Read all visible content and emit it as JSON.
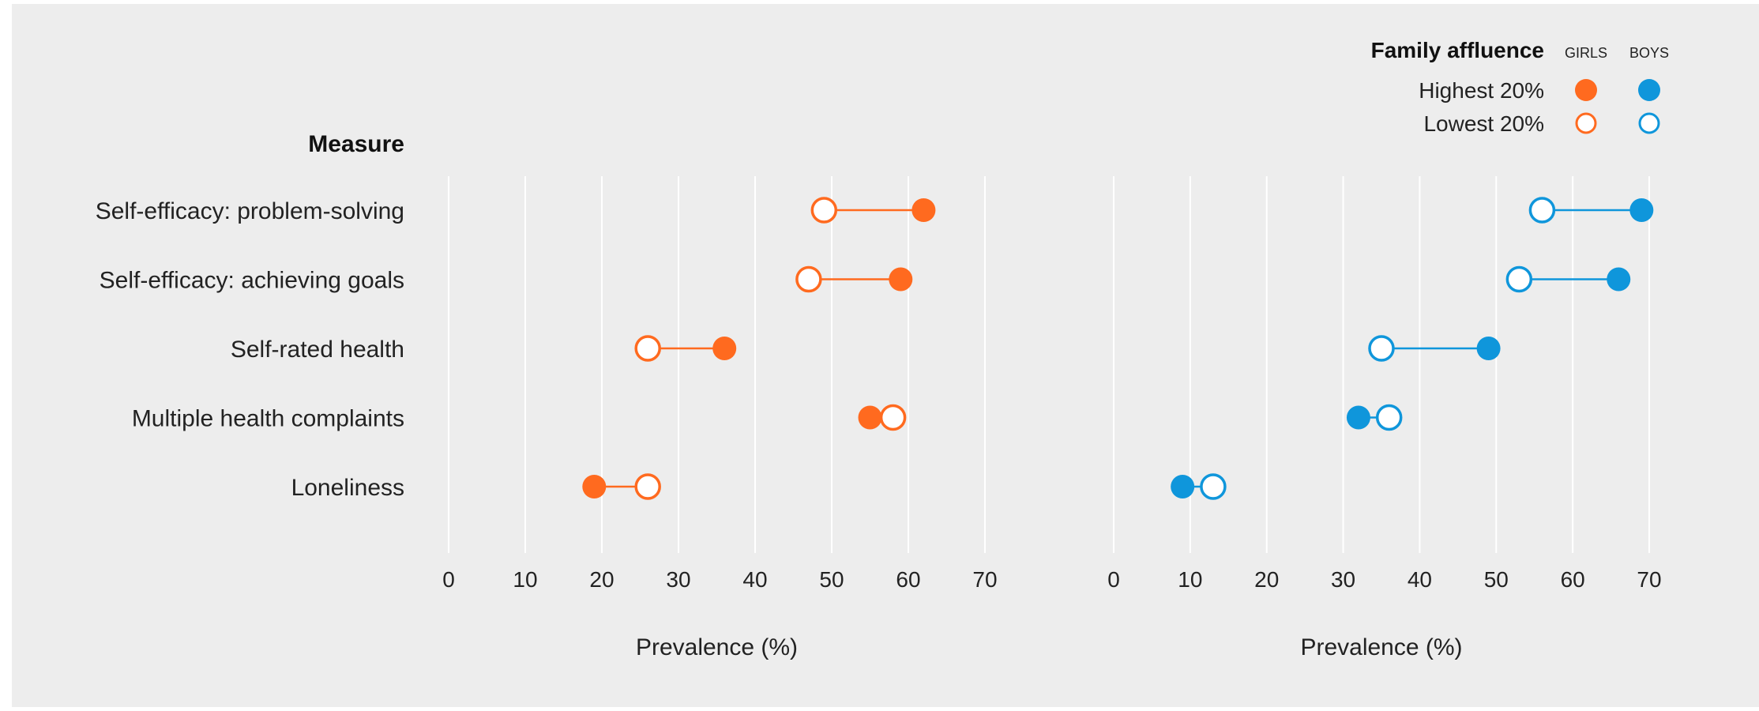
{
  "chart_data": {
    "type": "dumbbell",
    "measure_header": "Measure",
    "categories": [
      "Self-efficacy: problem-solving",
      "Self-efficacy: achieving goals",
      "Self-rated health",
      "Multiple health complaints",
      "Loneliness"
    ],
    "panels": [
      {
        "name": "Girls",
        "color": "#ff6a1f",
        "xlabel": "Prevalence (%)",
        "xlim": [
          0,
          70
        ],
        "ticks": [
          0,
          10,
          20,
          30,
          40,
          50,
          60,
          70
        ],
        "series": [
          {
            "name": "Highest 20%",
            "marker": "filled",
            "values": [
              62,
              59,
              36,
              55,
              19
            ]
          },
          {
            "name": "Lowest 20%",
            "marker": "hollow",
            "values": [
              49,
              47,
              26,
              58,
              26
            ]
          }
        ]
      },
      {
        "name": "Boys",
        "color": "#0f96db",
        "xlabel": "Prevalence (%)",
        "xlim": [
          0,
          70
        ],
        "ticks": [
          0,
          10,
          20,
          30,
          40,
          50,
          60,
          70
        ],
        "series": [
          {
            "name": "Highest 20%",
            "marker": "filled",
            "values": [
              69,
              66,
              49,
              32,
              9
            ]
          },
          {
            "name": "Lowest 20%",
            "marker": "hollow",
            "values": [
              56,
              53,
              35,
              36,
              13
            ]
          }
        ]
      }
    ],
    "legend": {
      "title": "Family affluence",
      "col_girls": "GIRLS",
      "col_boys": "BOYS",
      "rows": [
        "Highest 20%",
        "Lowest 20%"
      ],
      "placement": "top-right"
    },
    "grid": true
  }
}
